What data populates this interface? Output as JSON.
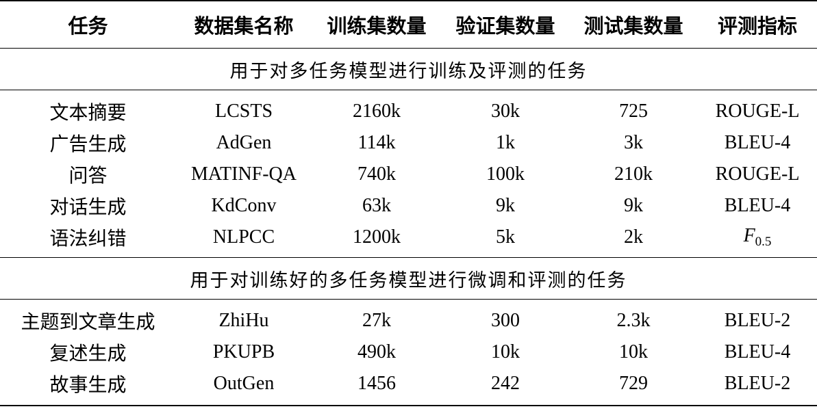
{
  "header": {
    "task": "任务",
    "dataset": "数据集名称",
    "train": "训练集数量",
    "valid": "验证集数量",
    "test": "测试集数量",
    "metric": "评测指标"
  },
  "sections": [
    {
      "title": "用于对多任务模型进行训练及评测的任务",
      "rows": [
        {
          "task": "文本摘要",
          "dataset": "LCSTS",
          "train": "2160k",
          "valid": "30k",
          "test": "725",
          "metric": "ROUGE-L"
        },
        {
          "task": "广告生成",
          "dataset": "AdGen",
          "train": "114k",
          "valid": "1k",
          "test": "3k",
          "metric": "BLEU-4"
        },
        {
          "task": "问答",
          "dataset": "MATINF-QA",
          "train": "740k",
          "valid": "100k",
          "test": "210k",
          "metric": "ROUGE-L"
        },
        {
          "task": "对话生成",
          "dataset": "KdConv",
          "train": "63k",
          "valid": "9k",
          "test": "9k",
          "metric": "BLEU-4"
        },
        {
          "task": "语法纠错",
          "dataset": "NLPCC",
          "train": "1200k",
          "valid": "5k",
          "test": "2k",
          "metric_main": "F",
          "metric_sub": "0.5"
        }
      ]
    },
    {
      "title": "用于对训练好的多任务模型进行微调和评测的任务",
      "rows": [
        {
          "task": "主题到文章生成",
          "dataset": "ZhiHu",
          "train": "27k",
          "valid": "300",
          "test": "2.3k",
          "metric": "BLEU-2"
        },
        {
          "task": "复述生成",
          "dataset": "PKUPB",
          "train": "490k",
          "valid": "10k",
          "test": "10k",
          "metric": "BLEU-4"
        },
        {
          "task": "故事生成",
          "dataset": "OutGen",
          "train": "1456",
          "valid": "242",
          "test": "729",
          "metric": "BLEU-2"
        }
      ]
    }
  ]
}
